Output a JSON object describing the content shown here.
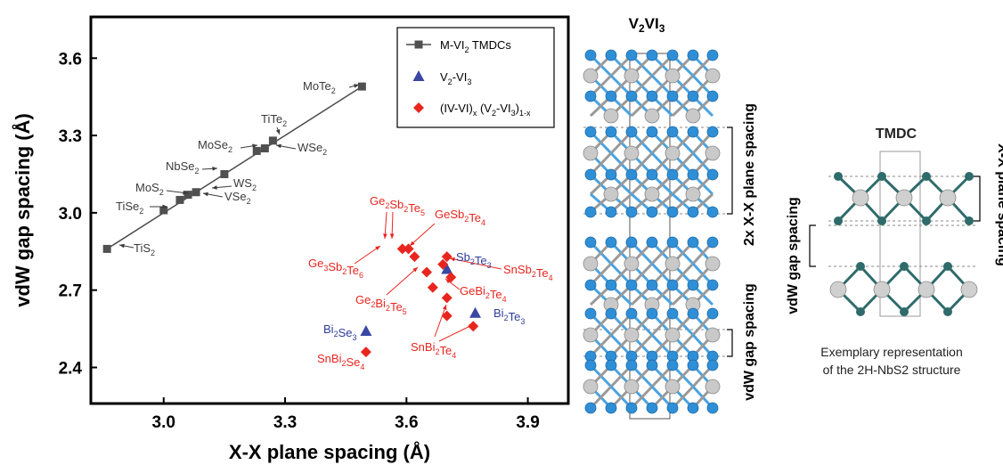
{
  "chart_data": {
    "type": "scatter",
    "xlabel": "X-X plane spacing (Å)",
    "ylabel": "vdW gap spacing (Å)",
    "xlim": [
      2.82,
      4.0
    ],
    "ylim": [
      2.26,
      3.76
    ],
    "xticks": [
      "3.0",
      "3.3",
      "3.6",
      "3.9"
    ],
    "yticks": [
      "2.4",
      "2.7",
      "3.0",
      "3.3",
      "3.6"
    ],
    "legend_position": "top-right",
    "legend": [
      {
        "marker": "square",
        "color": "#505050",
        "label": "M-VI",
        "sub": "2",
        "tail": " TMDCs"
      },
      {
        "marker": "triangle",
        "color": "#3a47a3",
        "label": "V",
        "sub": "2",
        "tail": "-VI",
        "sub2": "3"
      },
      {
        "marker": "diamond",
        "color": "#e8261f",
        "label": "(IV-VI)",
        "sub": "x",
        "tail": " (V",
        "sub2": "2",
        "tail2": "-VI",
        "sub3": "3",
        "tail3": ")",
        "sub4": "1-x"
      }
    ],
    "series": [
      {
        "name": "M-VI2 TMDCs",
        "color": "#505050",
        "marker": "square",
        "fit_line": [
          [
            2.86,
            2.86
          ],
          [
            3.49,
            3.49
          ]
        ],
        "points": [
          {
            "x": 2.86,
            "y": 2.86,
            "label": "TiS2"
          },
          {
            "x": 3.0,
            "y": 3.01,
            "label": "TiSe2"
          },
          {
            "x": 3.04,
            "y": 3.05,
            "label": "MoS2"
          },
          {
            "x": 3.06,
            "y": 3.07,
            "label": "VSe2"
          },
          {
            "x": 3.08,
            "y": 3.08,
            "label": "WS2"
          },
          {
            "x": 3.15,
            "y": 3.15,
            "label": "NbSe2"
          },
          {
            "x": 3.23,
            "y": 3.24,
            "label": "MoSe2"
          },
          {
            "x": 3.25,
            "y": 3.25,
            "label": "WSe2"
          },
          {
            "x": 3.27,
            "y": 3.28,
            "label": "TiTe2"
          },
          {
            "x": 3.49,
            "y": 3.49,
            "label": "MoTe2"
          }
        ]
      },
      {
        "name": "V2-VI3",
        "color": "#3a47a3",
        "marker": "triangle",
        "points": [
          {
            "x": 3.5,
            "y": 2.54,
            "label": "Bi2Se3"
          },
          {
            "x": 3.7,
            "y": 2.78,
            "label": "Sb2Te3"
          },
          {
            "x": 3.77,
            "y": 2.61,
            "label": "Bi2Te3"
          }
        ]
      },
      {
        "name": "(IV-VI)x(V2-VI3)1-x",
        "color": "#e8261f",
        "marker": "diamond",
        "points": [
          {
            "x": 3.5,
            "y": 2.46,
            "label": "SnBi2Se4"
          },
          {
            "x": 3.59,
            "y": 2.86
          },
          {
            "x": 3.605,
            "y": 2.86
          },
          {
            "x": 3.62,
            "y": 2.83
          },
          {
            "x": 3.65,
            "y": 2.77
          },
          {
            "x": 3.665,
            "y": 2.71
          },
          {
            "x": 3.69,
            "y": 2.8
          },
          {
            "x": 3.7,
            "y": 2.83
          },
          {
            "x": 3.71,
            "y": 2.75
          },
          {
            "x": 3.7,
            "y": 2.67
          },
          {
            "x": 3.7,
            "y": 2.6
          },
          {
            "x": 3.765,
            "y": 2.56
          }
        ]
      }
    ],
    "annotations": [
      {
        "text": "TiS",
        "sub": "2",
        "color": "gray"
      },
      {
        "text": "TiSe",
        "sub": "2",
        "color": "gray"
      },
      {
        "text": "MoS",
        "sub": "2",
        "color": "gray"
      },
      {
        "text": "WS",
        "sub": "2",
        "color": "gray"
      },
      {
        "text": "VSe",
        "sub": "2",
        "color": "gray"
      },
      {
        "text": "NbSe",
        "sub": "2",
        "color": "gray"
      },
      {
        "text": "MoSe",
        "sub": "2",
        "color": "gray"
      },
      {
        "text": "WSe",
        "sub": "2",
        "color": "gray"
      },
      {
        "text": "TiTe",
        "sub": "2",
        "color": "gray"
      },
      {
        "text": "MoTe",
        "sub": "2",
        "color": "gray"
      },
      {
        "text": "Ge2Sb2Te5",
        "color": "red"
      },
      {
        "text": "GeSb2Te4",
        "color": "red"
      },
      {
        "text": "Ge3Sb2Te6",
        "color": "red"
      },
      {
        "text": "SnSb2Te4",
        "color": "red"
      },
      {
        "text": "Ge2Bi2Te5",
        "color": "red"
      },
      {
        "text": "GeBi2Te4",
        "color": "red"
      },
      {
        "text": "SnBi2Te4",
        "color": "red"
      },
      {
        "text": "SnBi2Se4",
        "color": "red"
      },
      {
        "text": "Sb2Te3",
        "color": "blue"
      },
      {
        "text": "Bi2Te3",
        "color": "blue"
      },
      {
        "text": "Bi2Se3",
        "color": "blue"
      }
    ]
  },
  "middle_panel": {
    "title": "V2VI3",
    "label_top": "2x X-X plane spacing",
    "label_bottom": "vdW gap spacing"
  },
  "right_panel": {
    "title": "TMDC",
    "label_left": "vdW gap spacing",
    "label_right": "X-X plane spacing",
    "caption_line1": "Exemplary representation",
    "caption_line2": "of the 2H-NbS2 structure"
  },
  "colors": {
    "atom_blue": "#2f8fd6",
    "atom_gray": "#c9c9c9",
    "atom_teal": "#2f6b6b",
    "bond_blue": "#4aa3e0",
    "bond_gray": "#9a9a9a"
  }
}
